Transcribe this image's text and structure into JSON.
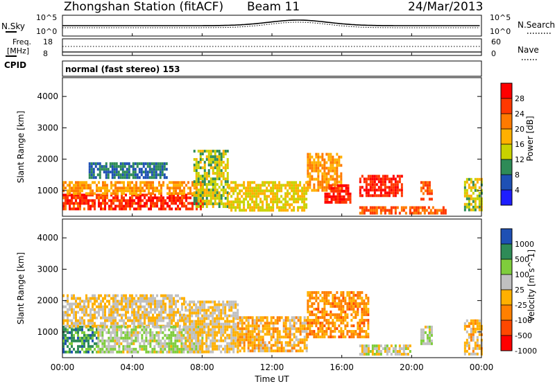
{
  "header": {
    "station": "Zhongshan Station (fitACF)",
    "beam": "Beam 11",
    "date": "24/Mar/2013"
  },
  "noise_panel": {
    "left_label": "N.Sky",
    "left_ticks": [
      "10^5",
      "10^0"
    ],
    "right_label": "N.Search",
    "right_ticks": [
      "10^5",
      "10^0"
    ]
  },
  "freq_panel": {
    "left_label_line1": "Freq.",
    "left_label_line2": "[MHz]",
    "left_ticks": [
      "18",
      "8"
    ],
    "right_label": "Nave",
    "right_ticks": [
      "60",
      "0"
    ]
  },
  "cpid": {
    "label": "CPID",
    "text": "normal (fast stereo) 153"
  },
  "power_panel": {
    "ylabel": "Slant Range [km]",
    "yticks": [
      "4000",
      "3000",
      "2000",
      "1000"
    ],
    "colorbar_label": "Power [dB]",
    "colorbar_ticks": [
      "28",
      "24",
      "20",
      "16",
      "12",
      "8",
      "4"
    ],
    "colors": [
      "#ff0000",
      "#ff3800",
      "#ff7a00",
      "#ffb000",
      "#c8d200",
      "#2e8b57",
      "#1e50b4",
      "#1e1eff"
    ]
  },
  "velocity_panel": {
    "ylabel": "Slant Range [km]",
    "yticks": [
      "4000",
      "3000",
      "2000",
      "1000"
    ],
    "colorbar_label": "Velocity [m s^-1]",
    "colorbar_ticks": [
      "1000",
      "500",
      "100",
      "25",
      "-25",
      "-100",
      "-500",
      "-1000"
    ],
    "colors": [
      "#1e50b4",
      "#2e8b57",
      "#7fcd3c",
      "#c0c0c0",
      "#ffb000",
      "#ff8000",
      "#ff4800",
      "#ff0000"
    ]
  },
  "xaxis": {
    "label": "Time UT",
    "ticks": [
      "00:00",
      "04:00",
      "08:00",
      "12:00",
      "16:00",
      "20:00",
      "00:00"
    ]
  },
  "chart_data": [
    {
      "type": "heatmap",
      "title": "Power",
      "xlabel": "Time UT",
      "ylabel": "Slant Range [km]",
      "xlim": [
        0,
        24
      ],
      "ylim": [
        180,
        4600
      ],
      "colorbar": {
        "label": "Power [dB]",
        "range": [
          0,
          32
        ]
      },
      "regions": [
        {
          "t": [
            0,
            8
          ],
          "r": [
            400,
            900
          ],
          "value": 27
        },
        {
          "t": [
            0,
            8
          ],
          "r": [
            900,
            1300
          ],
          "value": 20
        },
        {
          "t": [
            1.5,
            6
          ],
          "r": [
            1400,
            1900
          ],
          "value": 8
        },
        {
          "t": [
            7.5,
            9.5
          ],
          "r": [
            500,
            2300
          ],
          "value": 14
        },
        {
          "t": [
            9.5,
            14
          ],
          "r": [
            400,
            1300
          ],
          "value": 16
        },
        {
          "t": [
            14,
            16
          ],
          "r": [
            1000,
            2200
          ],
          "value": 20
        },
        {
          "t": [
            15,
            16.5
          ],
          "r": [
            600,
            1200
          ],
          "value": 28
        },
        {
          "t": [
            17,
            19.5
          ],
          "r": [
            800,
            1500
          ],
          "value": 28
        },
        {
          "t": [
            17,
            22
          ],
          "r": [
            300,
            500
          ],
          "value": 24
        },
        {
          "t": [
            20.5,
            21.2
          ],
          "r": [
            700,
            1300
          ],
          "value": 24
        },
        {
          "t": [
            23,
            24
          ],
          "r": [
            400,
            1400
          ],
          "value": 14
        }
      ]
    },
    {
      "type": "heatmap",
      "title": "Velocity",
      "xlabel": "Time UT",
      "ylabel": "Slant Range [km]",
      "xlim": [
        0,
        24
      ],
      "ylim": [
        180,
        4600
      ],
      "colorbar": {
        "label": "Velocity [m s^-1]",
        "range": [
          -1000,
          1000
        ]
      },
      "regions": [
        {
          "t": [
            0,
            2
          ],
          "r": [
            400,
            1200
          ],
          "value": 600
        },
        {
          "t": [
            0,
            7
          ],
          "r": [
            1200,
            2200
          ],
          "value": 0
        },
        {
          "t": [
            2,
            8
          ],
          "r": [
            400,
            1200
          ],
          "value": 200
        },
        {
          "t": [
            7,
            10
          ],
          "r": [
            400,
            2000
          ],
          "value": 0
        },
        {
          "t": [
            10,
            14
          ],
          "r": [
            400,
            1500
          ],
          "value": -150
        },
        {
          "t": [
            14,
            17.5
          ],
          "r": [
            800,
            2300
          ],
          "value": -300
        },
        {
          "t": [
            17,
            20
          ],
          "r": [
            300,
            600
          ],
          "value": 100
        },
        {
          "t": [
            20.5,
            21.2
          ],
          "r": [
            600,
            1200
          ],
          "value": 200
        },
        {
          "t": [
            23,
            24
          ],
          "r": [
            300,
            1400
          ],
          "value": -100
        }
      ]
    }
  ]
}
